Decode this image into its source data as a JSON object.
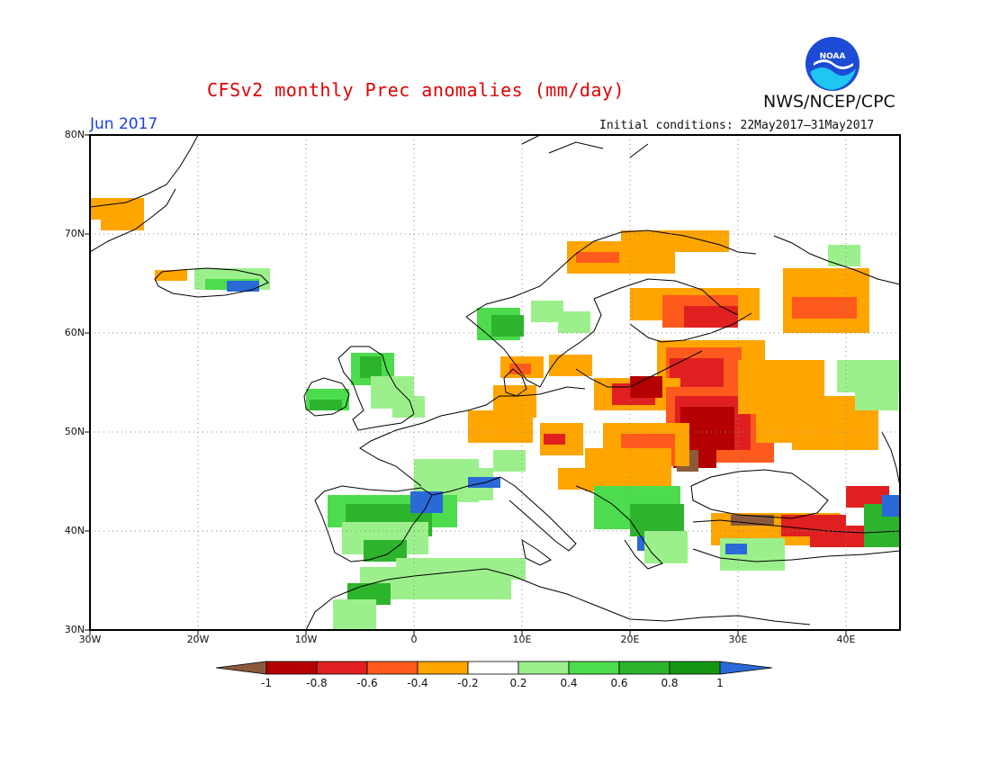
{
  "header": {
    "title": "CFSv2 monthly Prec anomalies (mm/day)",
    "agency": "NWS/NCEP/CPC",
    "month": "Jun 2017",
    "initial_conditions": "Initial conditions: 22May2017–31May2017",
    "logo_text": "NOAA"
  },
  "axes": {
    "lat_labels": [
      "80N",
      "70N",
      "60N",
      "50N",
      "40N",
      "30N"
    ],
    "lon_labels": [
      "30W",
      "20W",
      "10W",
      "0",
      "10E",
      "20E",
      "30E",
      "40E"
    ]
  },
  "colorbar": {
    "labels": [
      "-1",
      "-0.8",
      "-0.6",
      "-0.4",
      "-0.2",
      "0.2",
      "0.4",
      "0.6",
      "0.8",
      "1"
    ],
    "colors": [
      "#8b5a3c",
      "#b40000",
      "#e02020",
      "#ff5a1e",
      "#ffa500",
      "#ffffff",
      "#9cf08c",
      "#4ddc4d",
      "#2db42d",
      "#149614",
      "#2a6ad8"
    ]
  },
  "colors": {
    "title": "#e00000",
    "month": "#1b3fe0",
    "noaa_blue": "#1c4bd6"
  }
}
